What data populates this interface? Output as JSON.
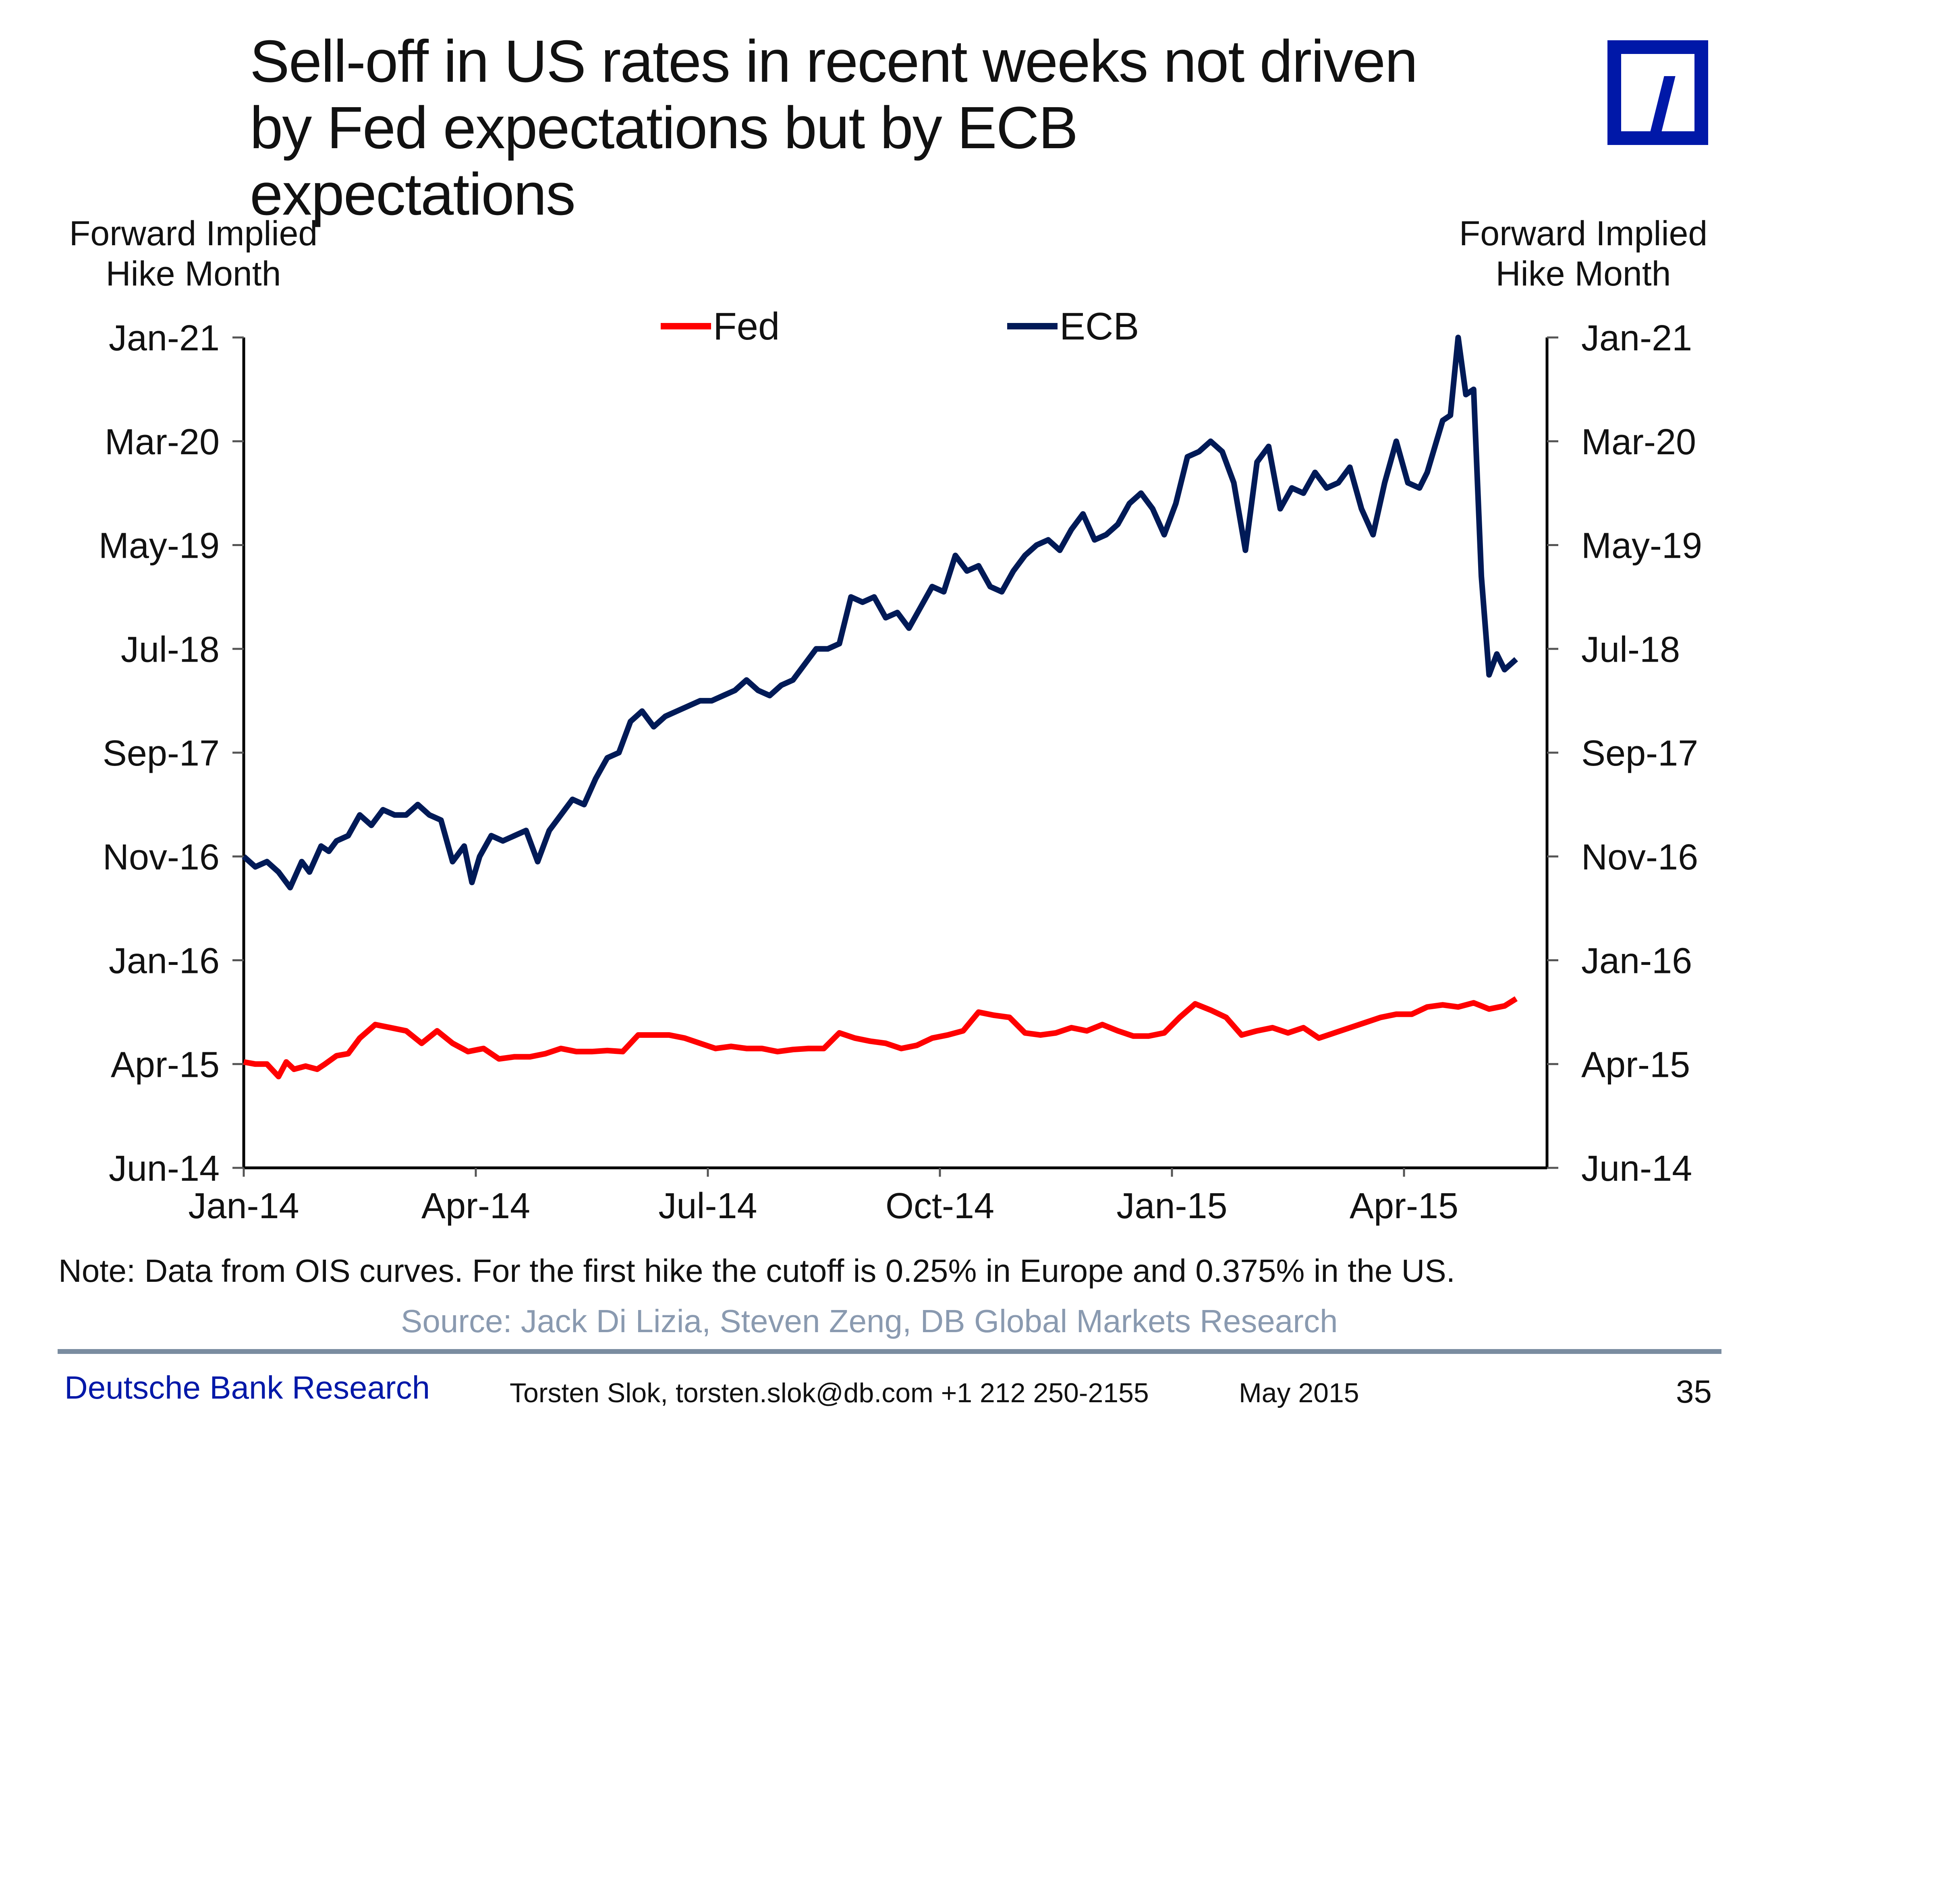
{
  "header": {
    "title_line1": "Sell-off in US rates in recent weeks not driven",
    "title_line2": "by Fed expectations but by ECB expectations",
    "logo": "deutsche-bank-logo"
  },
  "footer": {
    "note": "Note: Data from OIS curves. For the first hike the cutoff is 0.25% in Europe and 0.375% in the US.",
    "source": "Source: Jack Di Lizia, Steven Zeng, DB Global Markets Research",
    "brand": "Deutsche Bank Research",
    "author": "Torsten Slok, torsten.slok@db.com  +1 212 250-2155",
    "date": "May 2015",
    "page": "35"
  },
  "colors": {
    "fed": "#ff0000",
    "ecb": "#001a57",
    "logo": "#0018a8",
    "brand": "#0018a8",
    "source": "#8a9ab0"
  },
  "chart_data": {
    "type": "line",
    "title": "Sell-off in US rates in recent weeks not driven by Fed expectations but by ECB expectations",
    "ylabel_left": "Forward Implied Hike Month",
    "ylabel_right": "Forward Implied Hike Month",
    "ylabel_left_lines": [
      "Forward Implied",
      "Hike Month"
    ],
    "ylabel_right_lines": [
      "Forward Implied",
      "Hike Month"
    ],
    "xlabel": "",
    "x_ticks": [
      "Jan-14",
      "Apr-14",
      "Jul-14",
      "Oct-14",
      "Jan-15",
      "Apr-15"
    ],
    "x_unit": "months since Jan-14",
    "xlim": [
      0,
      16.6
    ],
    "y_ticks": [
      "Jun-14",
      "Apr-15",
      "Jan-16",
      "Nov-16",
      "Sep-17",
      "Jul-18",
      "May-19",
      "Mar-20",
      "Jan-21"
    ],
    "y_unit": "y-tick index (0 = Jun-14, 8 = Jan-21)",
    "ylim": [
      0,
      8
    ],
    "legend": [
      "Fed",
      "ECB"
    ],
    "legend_position": "top-center",
    "grid": false,
    "series": [
      {
        "name": "Fed",
        "x": [
          0,
          0.15,
          0.3,
          0.45,
          0.55,
          0.65,
          0.8,
          0.95,
          1.05,
          1.2,
          1.35,
          1.5,
          1.7,
          1.9,
          2.1,
          2.3,
          2.5,
          2.7,
          2.9,
          3.1,
          3.3,
          3.5,
          3.7,
          3.9,
          4.1,
          4.3,
          4.5,
          4.7,
          4.9,
          5.1,
          5.3,
          5.5,
          5.7,
          5.9,
          6.1,
          6.3,
          6.5,
          6.7,
          6.9,
          7.1,
          7.3,
          7.5,
          7.7,
          7.9,
          8.1,
          8.3,
          8.5,
          8.7,
          8.9,
          9.1,
          9.3,
          9.5,
          9.7,
          9.9,
          10.1,
          10.3,
          10.5,
          10.7,
          10.9,
          11.1,
          11.3,
          11.5,
          11.7,
          11.9,
          12.1,
          12.3,
          12.5,
          12.7,
          12.9,
          13.1,
          13.3,
          13.5,
          13.7,
          13.9,
          14.1,
          14.3,
          14.5,
          14.7,
          14.9,
          15.1,
          15.3,
          15.5,
          15.7,
          15.9,
          16.1,
          16.3,
          16.45
        ],
        "y": [
          1.02,
          1.0,
          1.0,
          0.88,
          1.02,
          0.95,
          0.98,
          0.95,
          1.0,
          1.08,
          1.1,
          1.25,
          1.38,
          1.35,
          1.32,
          1.2,
          1.32,
          1.2,
          1.12,
          1.15,
          1.05,
          1.07,
          1.07,
          1.1,
          1.15,
          1.12,
          1.12,
          1.13,
          1.12,
          1.28,
          1.28,
          1.28,
          1.25,
          1.2,
          1.15,
          1.17,
          1.15,
          1.15,
          1.12,
          1.14,
          1.15,
          1.15,
          1.3,
          1.25,
          1.22,
          1.2,
          1.15,
          1.18,
          1.25,
          1.28,
          1.32,
          1.5,
          1.47,
          1.45,
          1.3,
          1.28,
          1.3,
          1.35,
          1.32,
          1.38,
          1.32,
          1.27,
          1.27,
          1.3,
          1.45,
          1.58,
          1.52,
          1.45,
          1.28,
          1.32,
          1.35,
          1.3,
          1.35,
          1.25,
          1.3,
          1.35,
          1.4,
          1.45,
          1.48,
          1.48,
          1.55,
          1.57,
          1.55,
          1.59,
          1.53,
          1.56,
          1.63
        ]
      },
      {
        "name": "ECB",
        "x": [
          0,
          0.15,
          0.3,
          0.45,
          0.6,
          0.75,
          0.85,
          1.0,
          1.1,
          1.2,
          1.35,
          1.5,
          1.65,
          1.8,
          1.95,
          2.1,
          2.25,
          2.4,
          2.55,
          2.7,
          2.85,
          2.95,
          3.05,
          3.2,
          3.35,
          3.5,
          3.65,
          3.8,
          3.95,
          4.1,
          4.25,
          4.4,
          4.55,
          4.7,
          4.85,
          5.0,
          5.15,
          5.3,
          5.45,
          5.6,
          5.75,
          5.9,
          6.05,
          6.2,
          6.35,
          6.5,
          6.65,
          6.8,
          6.95,
          7.1,
          7.25,
          7.4,
          7.55,
          7.7,
          7.85,
          8.0,
          8.15,
          8.3,
          8.45,
          8.6,
          8.75,
          8.9,
          9.05,
          9.2,
          9.35,
          9.5,
          9.65,
          9.8,
          9.95,
          10.1,
          10.25,
          10.4,
          10.55,
          10.7,
          10.85,
          11.0,
          11.15,
          11.3,
          11.45,
          11.6,
          11.75,
          11.9,
          12.05,
          12.2,
          12.35,
          12.5,
          12.65,
          12.8,
          12.95,
          13.1,
          13.25,
          13.4,
          13.55,
          13.7,
          13.85,
          14.0,
          14.15,
          14.3,
          14.45,
          14.6,
          14.75,
          14.9,
          15.05,
          15.2,
          15.3,
          15.4,
          15.5,
          15.6,
          15.7,
          15.8,
          15.9,
          16.0,
          16.1,
          16.2,
          16.3,
          16.45
        ],
        "y": [
          3.0,
          2.9,
          2.95,
          2.85,
          2.7,
          2.95,
          2.85,
          3.1,
          3.05,
          3.15,
          3.2,
          3.4,
          3.3,
          3.45,
          3.4,
          3.4,
          3.5,
          3.4,
          3.35,
          2.95,
          3.1,
          2.75,
          3.0,
          3.2,
          3.15,
          3.2,
          3.25,
          2.95,
          3.25,
          3.4,
          3.55,
          3.5,
          3.75,
          3.95,
          4.0,
          4.3,
          4.4,
          4.25,
          4.35,
          4.4,
          4.45,
          4.5,
          4.5,
          4.55,
          4.6,
          4.7,
          4.6,
          4.55,
          4.65,
          4.7,
          4.85,
          5.0,
          5.0,
          5.05,
          5.5,
          5.45,
          5.5,
          5.3,
          5.35,
          5.2,
          5.4,
          5.6,
          5.55,
          5.9,
          5.75,
          5.8,
          5.6,
          5.55,
          5.75,
          5.9,
          6.0,
          6.05,
          5.95,
          6.15,
          6.3,
          6.05,
          6.1,
          6.2,
          6.4,
          6.5,
          6.35,
          6.1,
          6.4,
          6.85,
          6.9,
          7.0,
          6.9,
          6.6,
          5.95,
          6.8,
          6.95,
          6.35,
          6.55,
          6.5,
          6.7,
          6.55,
          6.6,
          6.75,
          6.35,
          6.1,
          6.6,
          7.0,
          6.6,
          6.55,
          6.7,
          6.95,
          7.2,
          7.25,
          8.0,
          7.45,
          7.5,
          5.7,
          4.75,
          4.95,
          4.8,
          4.9
        ]
      }
    ]
  }
}
